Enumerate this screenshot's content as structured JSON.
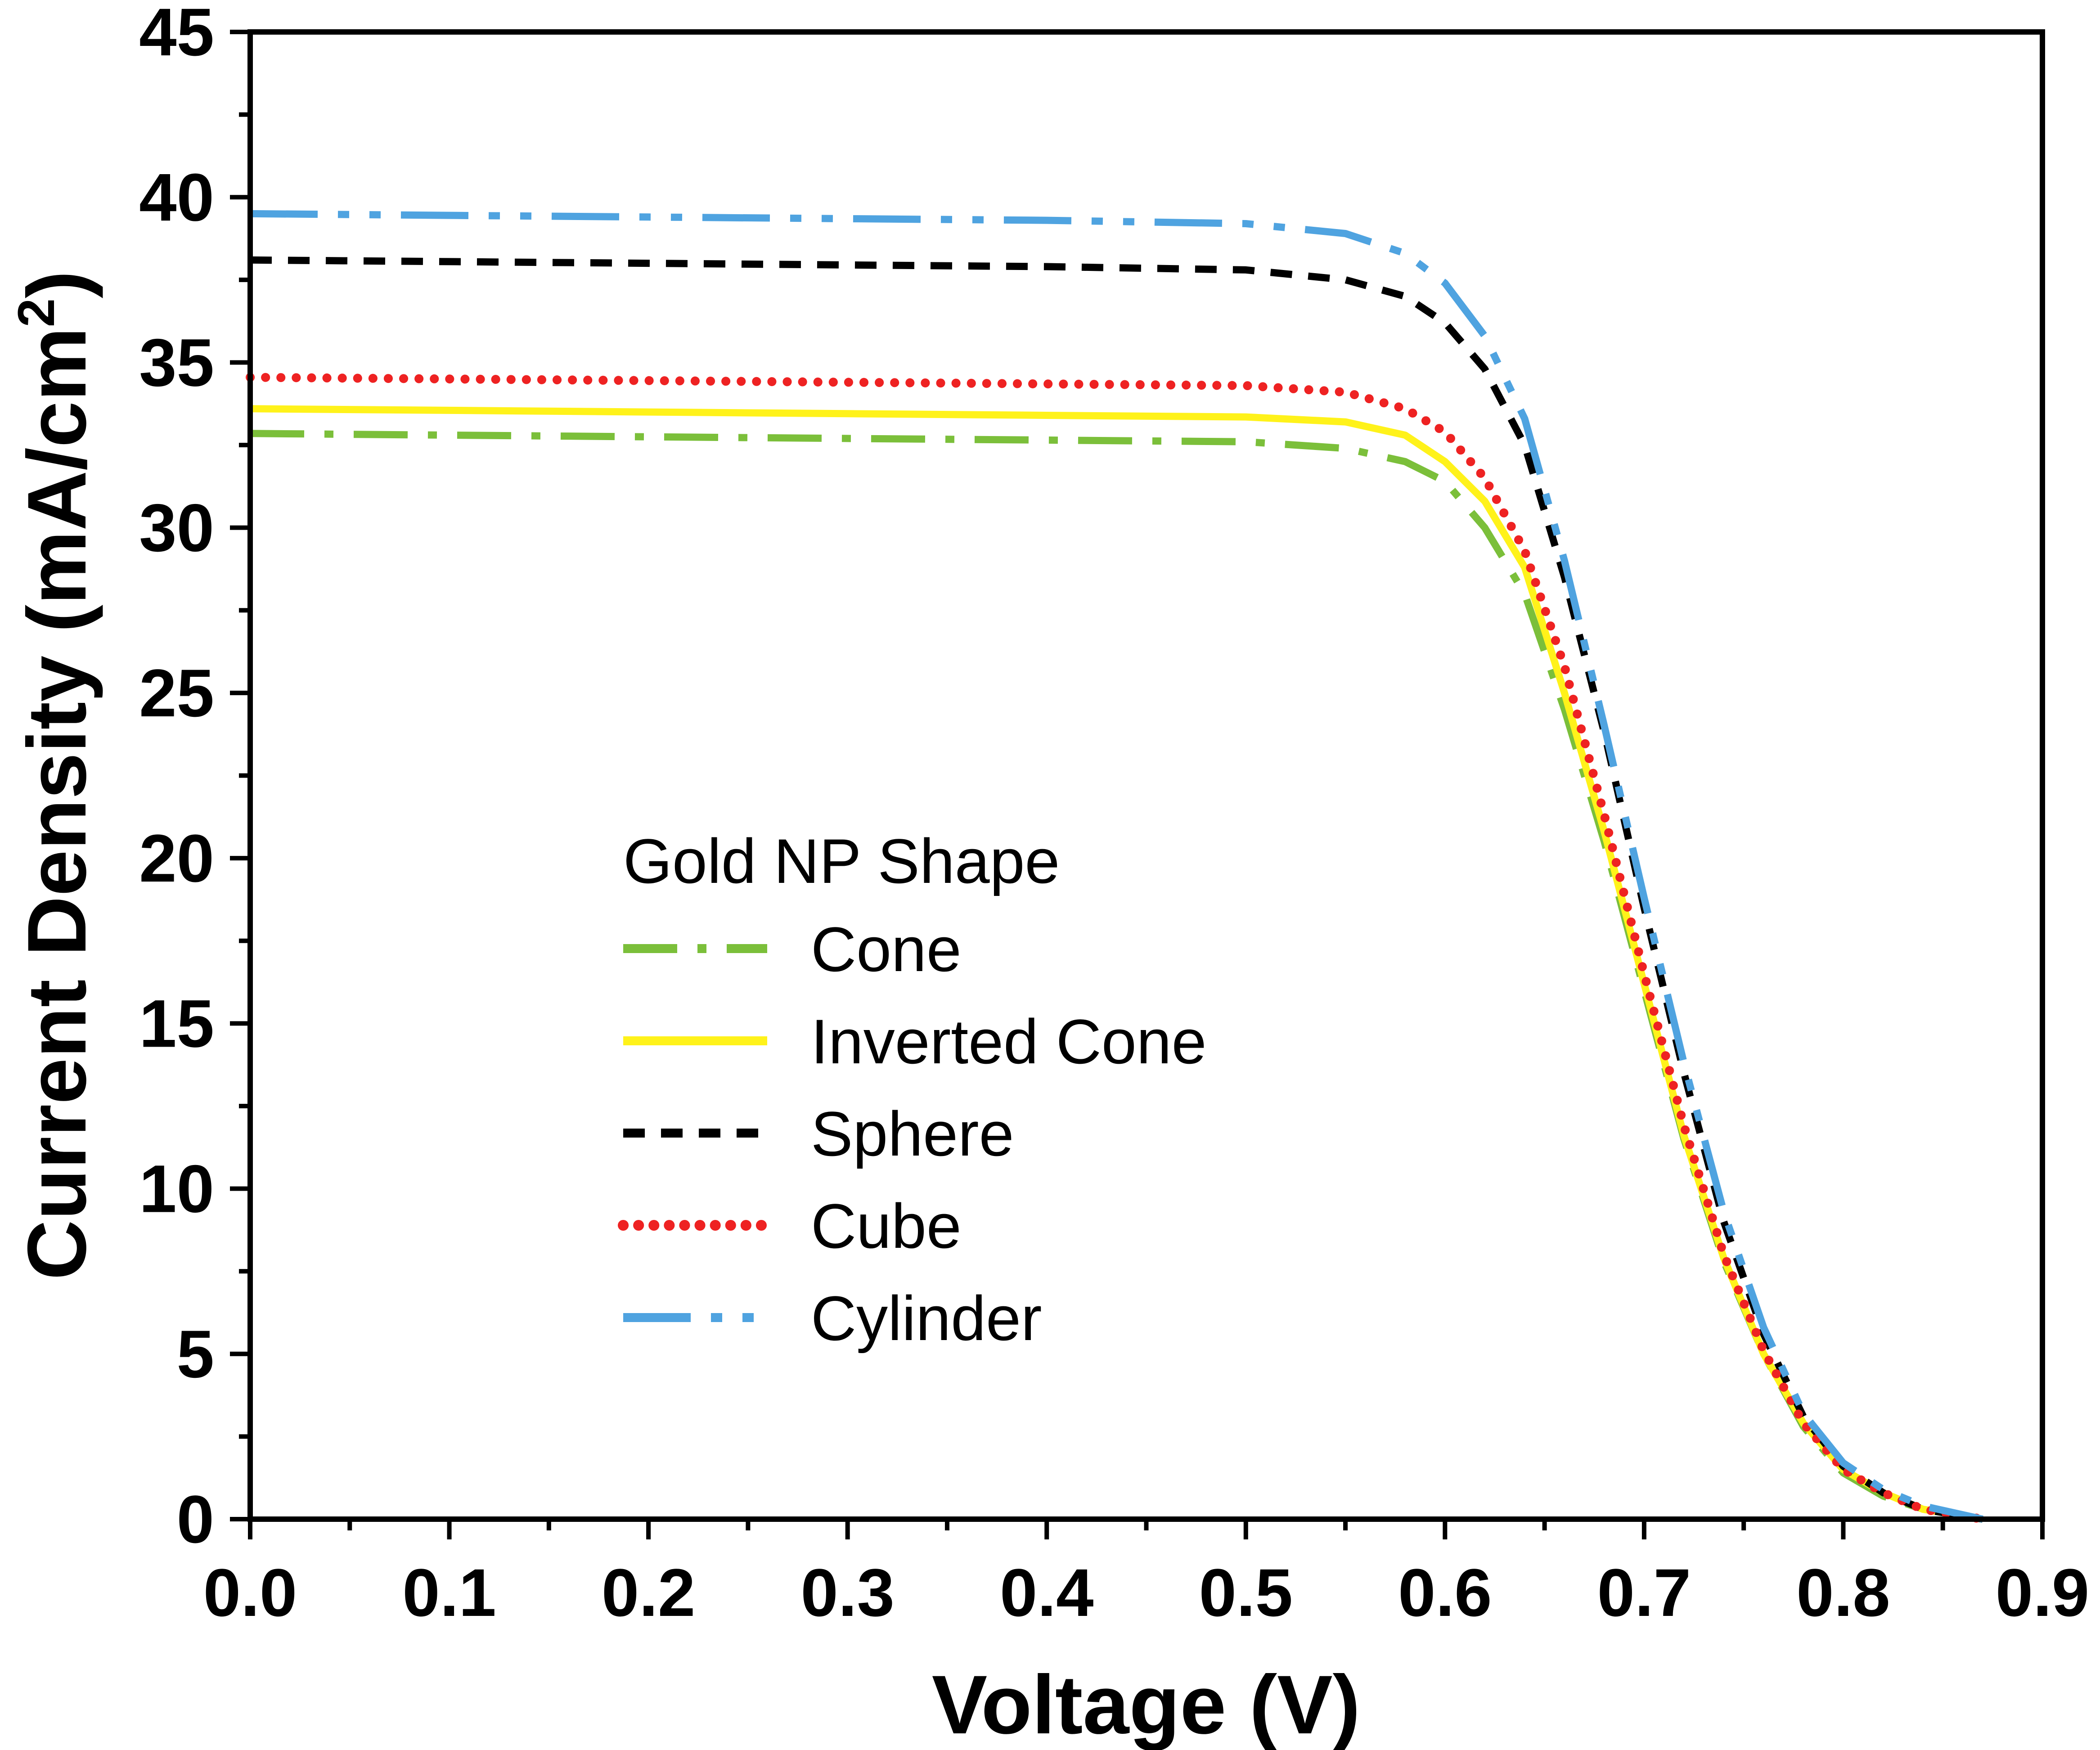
{
  "chart_data": {
    "type": "line",
    "title": "",
    "xlabel": "Voltage (V)",
    "ylabel": "Current Density (mA/cm",
    "ylabel_superscript": "2",
    "ylabel_close": ")",
    "xlim": [
      0,
      0.9
    ],
    "ylim": [
      0,
      45
    ],
    "xticks": [
      "0.0",
      "0.1",
      "0.2",
      "0.3",
      "0.4",
      "0.5",
      "0.6",
      "0.7",
      "0.8",
      "0.9"
    ],
    "yticks": [
      "0",
      "5",
      "10",
      "15",
      "20",
      "25",
      "30",
      "35",
      "40",
      "45"
    ],
    "grid": false,
    "legend": {
      "title": "Gold NP Shape",
      "position": "center-left"
    },
    "series": [
      {
        "name": "Cone",
        "color": "#7BBF3A",
        "style": "dash-dot",
        "points": [
          [
            0,
            32.85
          ],
          [
            0.1,
            32.8
          ],
          [
            0.2,
            32.75
          ],
          [
            0.3,
            32.7
          ],
          [
            0.4,
            32.65
          ],
          [
            0.5,
            32.6
          ],
          [
            0.55,
            32.4
          ],
          [
            0.58,
            32.0
          ],
          [
            0.6,
            31.4
          ],
          [
            0.62,
            30.0
          ],
          [
            0.64,
            28.0
          ],
          [
            0.66,
            24.5
          ],
          [
            0.68,
            20.5
          ],
          [
            0.7,
            16.0
          ],
          [
            0.72,
            11.5
          ],
          [
            0.74,
            7.8
          ],
          [
            0.76,
            5.0
          ],
          [
            0.78,
            2.8
          ],
          [
            0.8,
            1.4
          ],
          [
            0.82,
            0.7
          ],
          [
            0.84,
            0.3
          ],
          [
            0.87,
            0.0
          ]
        ]
      },
      {
        "name": "Inverted Cone",
        "color": "#FFF21A",
        "style": "solid",
        "points": [
          [
            0,
            33.6
          ],
          [
            0.1,
            33.55
          ],
          [
            0.2,
            33.5
          ],
          [
            0.3,
            33.45
          ],
          [
            0.4,
            33.4
          ],
          [
            0.5,
            33.35
          ],
          [
            0.55,
            33.2
          ],
          [
            0.58,
            32.8
          ],
          [
            0.6,
            32.0
          ],
          [
            0.62,
            30.8
          ],
          [
            0.64,
            28.8
          ],
          [
            0.66,
            25.0
          ],
          [
            0.68,
            20.8
          ],
          [
            0.7,
            16.2
          ],
          [
            0.72,
            11.6
          ],
          [
            0.74,
            7.9
          ],
          [
            0.76,
            5.0
          ],
          [
            0.78,
            2.9
          ],
          [
            0.8,
            1.5
          ],
          [
            0.82,
            0.8
          ],
          [
            0.84,
            0.3
          ],
          [
            0.87,
            0.0
          ]
        ]
      },
      {
        "name": "Sphere",
        "color": "#000000",
        "style": "dashed",
        "points": [
          [
            0,
            38.1
          ],
          [
            0.1,
            38.05
          ],
          [
            0.2,
            38.0
          ],
          [
            0.3,
            37.95
          ],
          [
            0.4,
            37.9
          ],
          [
            0.5,
            37.8
          ],
          [
            0.55,
            37.5
          ],
          [
            0.58,
            37.0
          ],
          [
            0.6,
            36.2
          ],
          [
            0.62,
            34.8
          ],
          [
            0.64,
            32.5
          ],
          [
            0.66,
            28.5
          ],
          [
            0.68,
            23.8
          ],
          [
            0.7,
            18.5
          ],
          [
            0.72,
            13.5
          ],
          [
            0.74,
            9.0
          ],
          [
            0.76,
            5.6
          ],
          [
            0.78,
            3.1
          ],
          [
            0.8,
            1.6
          ],
          [
            0.82,
            0.8
          ],
          [
            0.84,
            0.3
          ],
          [
            0.87,
            0.0
          ]
        ]
      },
      {
        "name": "Cube",
        "color": "#EE2222",
        "style": "dotted",
        "points": [
          [
            0,
            34.55
          ],
          [
            0.1,
            34.5
          ],
          [
            0.2,
            34.45
          ],
          [
            0.3,
            34.4
          ],
          [
            0.4,
            34.35
          ],
          [
            0.5,
            34.3
          ],
          [
            0.55,
            34.1
          ],
          [
            0.58,
            33.6
          ],
          [
            0.6,
            32.9
          ],
          [
            0.62,
            31.5
          ],
          [
            0.64,
            29.3
          ],
          [
            0.66,
            25.8
          ],
          [
            0.68,
            21.3
          ],
          [
            0.7,
            16.5
          ],
          [
            0.72,
            11.9
          ],
          [
            0.74,
            8.0
          ],
          [
            0.76,
            5.1
          ],
          [
            0.78,
            2.9
          ],
          [
            0.8,
            1.5
          ],
          [
            0.82,
            0.8
          ],
          [
            0.84,
            0.3
          ],
          [
            0.87,
            0.0
          ]
        ]
      },
      {
        "name": "Cylinder",
        "color": "#4FA3E0",
        "style": "dash-dot-dot",
        "points": [
          [
            0,
            39.5
          ],
          [
            0.1,
            39.45
          ],
          [
            0.2,
            39.4
          ],
          [
            0.3,
            39.35
          ],
          [
            0.4,
            39.3
          ],
          [
            0.5,
            39.2
          ],
          [
            0.55,
            38.9
          ],
          [
            0.58,
            38.3
          ],
          [
            0.6,
            37.4
          ],
          [
            0.62,
            35.8
          ],
          [
            0.64,
            33.3
          ],
          [
            0.66,
            29.0
          ],
          [
            0.68,
            24.0
          ],
          [
            0.7,
            18.8
          ],
          [
            0.72,
            13.8
          ],
          [
            0.74,
            9.3
          ],
          [
            0.76,
            5.8
          ],
          [
            0.78,
            3.2
          ],
          [
            0.8,
            1.7
          ],
          [
            0.82,
            0.9
          ],
          [
            0.84,
            0.4
          ],
          [
            0.87,
            0.0
          ]
        ]
      }
    ]
  }
}
